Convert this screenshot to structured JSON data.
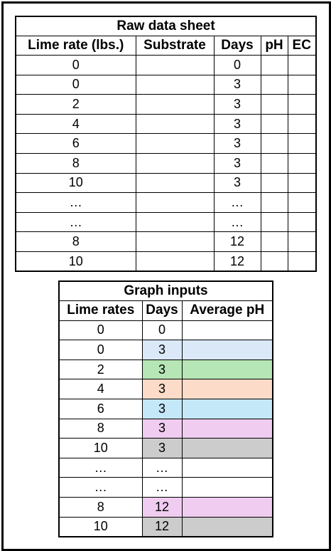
{
  "raw_table": {
    "title": "Raw data sheet",
    "headers": [
      "Lime rate (lbs.)",
      "Substrate",
      "Days",
      "pH",
      "EC"
    ],
    "rows": [
      {
        "lime": "0",
        "substrate": "",
        "days": "0",
        "ph": "",
        "ec": ""
      },
      {
        "lime": "0",
        "substrate": "",
        "days": "3",
        "ph": "",
        "ec": ""
      },
      {
        "lime": "2",
        "substrate": "",
        "days": "3",
        "ph": "",
        "ec": ""
      },
      {
        "lime": "4",
        "substrate": "",
        "days": "3",
        "ph": "",
        "ec": ""
      },
      {
        "lime": "6",
        "substrate": "",
        "days": "3",
        "ph": "",
        "ec": ""
      },
      {
        "lime": "8",
        "substrate": "",
        "days": "3",
        "ph": "",
        "ec": ""
      },
      {
        "lime": "10",
        "substrate": "",
        "days": "3",
        "ph": "",
        "ec": ""
      },
      {
        "lime": "…",
        "substrate": "",
        "days": "…",
        "ph": "",
        "ec": ""
      },
      {
        "lime": "…",
        "substrate": "",
        "days": "…",
        "ph": "",
        "ec": ""
      },
      {
        "lime": "8",
        "substrate": "",
        "days": "12",
        "ph": "",
        "ec": ""
      },
      {
        "lime": "10",
        "substrate": "",
        "days": "12",
        "ph": "",
        "ec": ""
      }
    ]
  },
  "graph_table": {
    "title": "Graph inputs",
    "headers": [
      "Lime rates",
      "Days",
      "Average pH"
    ],
    "rows": [
      {
        "lime": "0",
        "days": "0",
        "avg_ph": "",
        "color": "#ffffff"
      },
      {
        "lime": "0",
        "days": "3",
        "avg_ph": "",
        "color": "#dae8f8"
      },
      {
        "lime": "2",
        "days": "3",
        "avg_ph": "",
        "color": "#b6e6b6"
      },
      {
        "lime": "4",
        "days": "3",
        "avg_ph": "",
        "color": "#fcdcc8"
      },
      {
        "lime": "6",
        "days": "3",
        "avg_ph": "",
        "color": "#c4e8f8"
      },
      {
        "lime": "8",
        "days": "3",
        "avg_ph": "",
        "color": "#f0ccf0"
      },
      {
        "lime": "10",
        "days": "3",
        "avg_ph": "",
        "color": "#cccccc"
      },
      {
        "lime": "…",
        "days": "…",
        "avg_ph": "",
        "color": "#ffffff"
      },
      {
        "lime": "…",
        "days": "…",
        "avg_ph": "",
        "color": "#ffffff"
      },
      {
        "lime": "8",
        "days": "12",
        "avg_ph": "",
        "color": "#f0ccf0"
      },
      {
        "lime": "10",
        "days": "12",
        "avg_ph": "",
        "color": "#cccccc"
      }
    ]
  }
}
